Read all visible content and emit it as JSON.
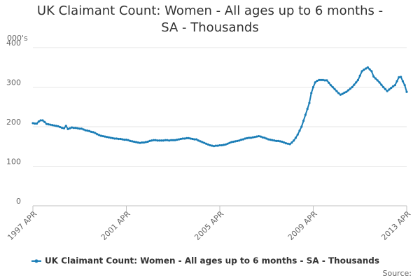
{
  "chart_data": {
    "type": "line",
    "title": "UK Claimant Count: Women - All ages up to 6 months - SA - Thousands",
    "y_label": "000's",
    "source": "Source:",
    "categories": [
      "1997 APR",
      null,
      null,
      null,
      null,
      null,
      null,
      null,
      null,
      null,
      null,
      null,
      null,
      null,
      null,
      null,
      null,
      null,
      null,
      null,
      null,
      null,
      null,
      null,
      null,
      null,
      null,
      null,
      null,
      null,
      null,
      null,
      null,
      null,
      null,
      null,
      null,
      null,
      null,
      null,
      null,
      null,
      null,
      null,
      null,
      null,
      null,
      null,
      "2001 APR",
      null,
      null,
      null,
      null,
      null,
      null,
      null,
      null,
      null,
      null,
      null,
      null,
      null,
      null,
      null,
      null,
      null,
      null,
      null,
      null,
      null,
      null,
      null,
      null,
      null,
      null,
      null,
      null,
      null,
      null,
      null,
      null,
      null,
      null,
      null,
      null,
      null,
      null,
      null,
      null,
      null,
      null,
      null,
      null,
      null,
      null,
      null,
      "2005 APR",
      null,
      null,
      null,
      null,
      null,
      null,
      null,
      null,
      null,
      null,
      null,
      null,
      null,
      null,
      null,
      null,
      null,
      null,
      null,
      null,
      null,
      null,
      null,
      null,
      null,
      null,
      null,
      null,
      null,
      null,
      null,
      null,
      null,
      null,
      null,
      null,
      null,
      null,
      null,
      null,
      null,
      null,
      null,
      null,
      null,
      null,
      null,
      "2009 APR",
      null,
      null,
      null,
      null,
      null,
      null,
      null,
      null,
      null,
      null,
      null,
      null,
      null,
      null,
      null,
      null,
      null,
      null,
      null,
      null,
      null,
      null,
      null,
      null,
      null,
      null,
      null,
      null,
      null,
      null,
      null,
      null,
      null,
      null,
      null,
      null,
      null,
      null,
      null,
      null,
      null,
      null,
      null,
      null,
      null,
      null,
      null,
      "2013 APR"
    ],
    "series": [
      {
        "name": "UK Claimant Count: Women - All ages up to 6 months - SA - Thousands",
        "color": "#1a7db6",
        "values": [
          209,
          208,
          208,
          213,
          216,
          216,
          212,
          207,
          206,
          205,
          204,
          203,
          202,
          201,
          199,
          197,
          196,
          202,
          194,
          196,
          198,
          197,
          197,
          196,
          195,
          195,
          193,
          191,
          190,
          189,
          187,
          186,
          184,
          181,
          179,
          177,
          176,
          175,
          174,
          173,
          172,
          171,
          170,
          170,
          169,
          169,
          168,
          167,
          167,
          166,
          164,
          163,
          162,
          161,
          160,
          159,
          160,
          160,
          161,
          162,
          164,
          165,
          166,
          166,
          165,
          165,
          165,
          165,
          166,
          166,
          165,
          166,
          166,
          166,
          167,
          168,
          169,
          170,
          170,
          171,
          171,
          170,
          169,
          168,
          168,
          165,
          163,
          161,
          159,
          157,
          155,
          153,
          152,
          151,
          152,
          152,
          153,
          153,
          154,
          155,
          157,
          159,
          161,
          162,
          163,
          164,
          165,
          167,
          168,
          170,
          171,
          172,
          172,
          173,
          174,
          175,
          176,
          175,
          173,
          172,
          170,
          168,
          167,
          166,
          165,
          164,
          164,
          163,
          162,
          160,
          158,
          157,
          156,
          160,
          165,
          172,
          180,
          190,
          200,
          215,
          230,
          245,
          260,
          285,
          300,
          312,
          316,
          318,
          318,
          318,
          317,
          317,
          311,
          305,
          300,
          295,
          290,
          285,
          281,
          283,
          286,
          288,
          292,
          296,
          300,
          306,
          312,
          318,
          329,
          340,
          344,
          347,
          350,
          345,
          340,
          327,
          322,
          317,
          312,
          306,
          300,
          295,
          290,
          294,
          298,
          302,
          305,
          315,
          325,
          326,
          315,
          305,
          288
        ]
      }
    ],
    "ylim": [
      0,
      400
    ],
    "yticks": [
      0,
      100,
      200,
      300,
      400
    ],
    "grid": true,
    "legend": "bottom"
  }
}
